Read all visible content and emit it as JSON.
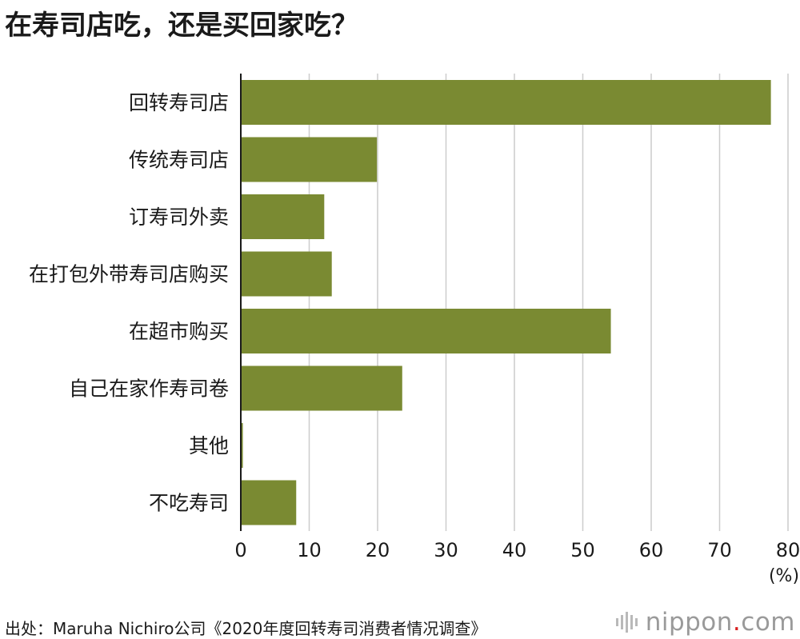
{
  "title": "在寿司店吃，还是买回家吃？",
  "source": "出处：Maruha Nichiro公司《2020年度回转寿司消费者情况调查》",
  "logo": {
    "name": "nippon",
    "dot": ".",
    "suffix": "com"
  },
  "colors": {
    "bar": "#7a8a32",
    "grid": "#cccccc",
    "axis": "#1a1a1a",
    "text": "#1a1a1a",
    "logo_dot": "#d81e1e"
  },
  "chart_data": {
    "type": "bar",
    "orientation": "horizontal",
    "categories": [
      "回转寿司店",
      "传统寿司店",
      "订寿司外卖",
      "在打包外带寿司店购买",
      "在超市购买",
      "自己在家作寿司卷",
      "其他",
      "不吃寿司"
    ],
    "values": [
      77.5,
      19.9,
      12.2,
      13.3,
      54.1,
      23.6,
      0.3,
      8.1
    ],
    "xticks": [
      0,
      10,
      20,
      30,
      40,
      50,
      60,
      70,
      80
    ],
    "xlim": [
      0,
      80
    ],
    "xunit": "(%)",
    "grid": true
  }
}
